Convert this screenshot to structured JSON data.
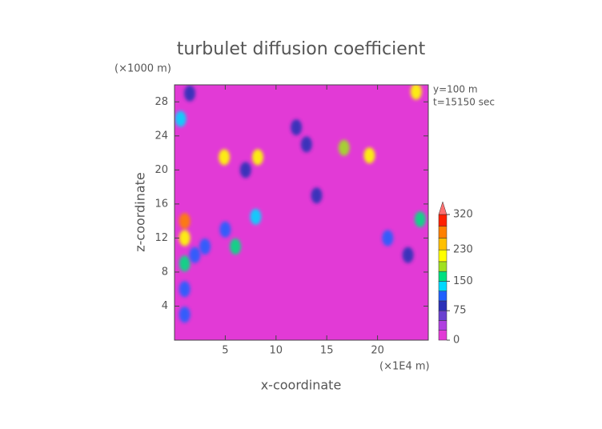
{
  "chart_data": {
    "type": "heatmap",
    "title": "turbulet diffusion coefficient",
    "x_label": "x-coordinate",
    "y_label": "z-coordinate",
    "x_unit": "(×1E4 m)",
    "y_unit": "(×1000 m)",
    "annotations": [
      "y=100 m",
      "t=15150 sec"
    ],
    "xlim": [
      0,
      25
    ],
    "ylim": [
      0,
      30
    ],
    "xticks": [
      5,
      10,
      15,
      20
    ],
    "yticks": [
      4,
      8,
      12,
      16,
      20,
      24,
      28
    ],
    "background_value": 10,
    "x": [
      1,
      1,
      1,
      1,
      1,
      2,
      3,
      6,
      5,
      8,
      8.2,
      4.9,
      19.2,
      16.7,
      23.8,
      24.2,
      21,
      23,
      0.6,
      12,
      13,
      7,
      14,
      1.5
    ],
    "y": [
      14,
      12,
      9,
      6,
      3,
      10,
      11,
      11,
      13,
      14.5,
      21.5,
      21.5,
      21.7,
      22.6,
      29.2,
      14.2,
      12,
      10,
      26,
      25,
      23,
      20,
      17,
      29
    ],
    "values": [
      260,
      200,
      160,
      120,
      100,
      110,
      100,
      170,
      100,
      140,
      200,
      210,
      200,
      180,
      200,
      160,
      100,
      90,
      130,
      90,
      90,
      80,
      80,
      80
    ],
    "colorbar": {
      "levels": [
        0,
        25,
        50,
        75,
        100,
        125,
        150,
        175,
        200,
        230,
        260,
        290,
        320
      ],
      "colors": [
        "#e23ad6",
        "#b040e0",
        "#6a40d0",
        "#2a30b8",
        "#2060ff",
        "#00d8ff",
        "#00e080",
        "#a0e020",
        "#ffff00",
        "#ffc000",
        "#ff8000",
        "#ff2000"
      ],
      "over_color": "#ff7070",
      "ticks": [
        0,
        75,
        150,
        230,
        320
      ]
    }
  }
}
